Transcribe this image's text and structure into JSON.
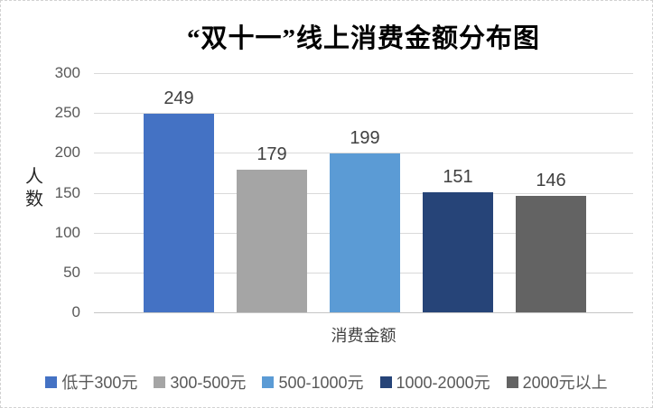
{
  "chart_data": {
    "type": "bar",
    "title": "“双十一”线上消费金额分布图",
    "xlabel": "消费金额",
    "ylabel": "人数",
    "categories": [
      "低于300元",
      "300-500元",
      "500-1000元",
      "1000-2000元",
      "2000元以上"
    ],
    "values": [
      249,
      179,
      199,
      151,
      146
    ],
    "bar_colors": [
      "#4472C4",
      "#A5A5A5",
      "#5B9BD5",
      "#264478",
      "#636363"
    ],
    "yticks": [
      0,
      50,
      100,
      150,
      200,
      250,
      300
    ],
    "ylim": [
      0,
      300
    ],
    "grid": true,
    "legend_position": "bottom",
    "data_labels": true
  },
  "colors": {
    "gridline": "#d9d9d9",
    "axis_line": "#c6c6c6",
    "tick_text": "#595959",
    "data_label_text": "#404040",
    "title_text": "#000000",
    "canvas_border": "#d2d2d2",
    "background": "#ffffff"
  }
}
